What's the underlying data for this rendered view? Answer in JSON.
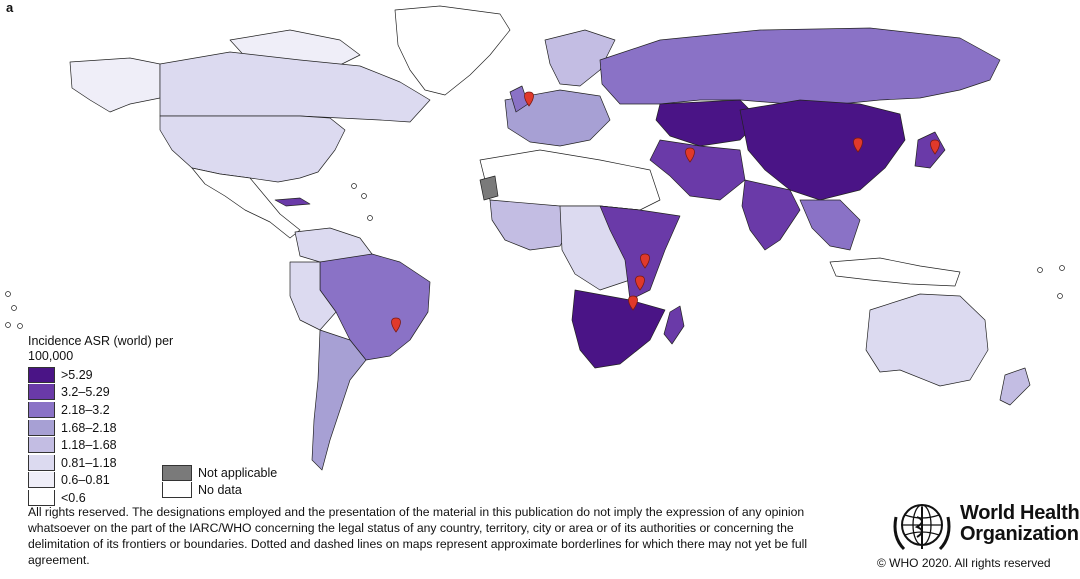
{
  "panel_label": "a",
  "legend": {
    "title": "Incidence ASR (world) per 100,000",
    "classes": [
      {
        "label": ">5.29",
        "color": "#4a1486"
      },
      {
        "label": "3.2–5.29",
        "color": "#6a3aa8"
      },
      {
        "label": "2.18–3.2",
        "color": "#8a72c6"
      },
      {
        "label": "1.68–2.18",
        "color": "#a7a0d4"
      },
      {
        "label": "1.18–1.68",
        "color": "#c3bde3"
      },
      {
        "label": "0.81–1.18",
        "color": "#dcdaf0"
      },
      {
        "label": "0.6–0.81",
        "color": "#efeef8"
      },
      {
        "label": "<0.6",
        "color": "#ffffff"
      }
    ],
    "extra": [
      {
        "label": "Not applicable",
        "color": "#7a7a7a"
      },
      {
        "label": "No data",
        "color": "#ffffff"
      }
    ]
  },
  "markers": {
    "color": "#e0392b",
    "count": 9
  },
  "disclaimer": "All rights reserved. The designations employed and the presentation of the material in this publication do not imply the expression of any opinion whatsoever on the part of the IARC/WHO concerning the legal status of any country, territory, city or area or of its authorities or concerning the delimitation of its frontiers or boundaries. Dotted and dashed lines on maps represent approximate borderlines for which there may not yet be full agreement.",
  "who": {
    "name_line1": "World Health",
    "name_line2": "Organization",
    "copyright": "© WHO 2020. All rights reserved"
  }
}
